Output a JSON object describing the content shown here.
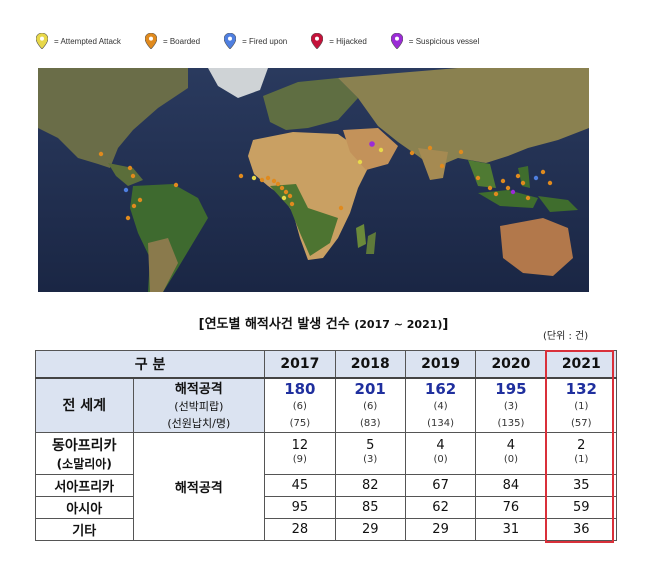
{
  "legend": [
    {
      "label": "= Attempted Attack",
      "color": "#e8d84a",
      "icon": "pin-icon"
    },
    {
      "label": "= Boarded",
      "color": "#e08a1e",
      "icon": "pin-icon"
    },
    {
      "label": "= Fired upon",
      "color": "#4f7fe0",
      "icon": "pin-icon"
    },
    {
      "label": "= Hijacked",
      "color": "#c4123a",
      "icon": "pin-icon"
    },
    {
      "label": "= Suspicious vessel",
      "color": "#9b2bd6",
      "icon": "pin-icon"
    }
  ],
  "title": {
    "text": "[연도별 해적사건 발생 건수",
    "years": "(2017 ~ 2021)",
    "close": "]"
  },
  "unit": "(단위 : 건)",
  "chart_data": {
    "type": "table",
    "header": {
      "label": "구  분",
      "years": [
        "2017",
        "2018",
        "2019",
        "2020",
        "2021"
      ]
    },
    "world": {
      "label": "전 세계",
      "sub": [
        "해적공격",
        "(선박피랍)",
        "(선원납치/명)"
      ],
      "attacks": [
        "180",
        "201",
        "162",
        "195",
        "132"
      ],
      "hijacked": [
        "(6)",
        "(6)",
        "(4)",
        "(3)",
        "(1)"
      ],
      "kidnapped": [
        "(75)",
        "(83)",
        "(134)",
        "(135)",
        "(57)"
      ]
    },
    "type_label": "해적공격",
    "regions": [
      {
        "name": "동아프리카",
        "sub": "(소말리아)",
        "values": [
          "12",
          "5",
          "4",
          "4",
          "2"
        ],
        "sub_values": [
          "(9)",
          "(3)",
          "(0)",
          "(0)",
          "(1)"
        ]
      },
      {
        "name": "서아프리카",
        "values": [
          "45",
          "82",
          "67",
          "84",
          "35"
        ]
      },
      {
        "name": "아시아",
        "values": [
          "95",
          "85",
          "62",
          "76",
          "59"
        ]
      },
      {
        "name": "기타",
        "values": [
          "28",
          "29",
          "29",
          "31",
          "36"
        ]
      }
    ],
    "highlight_column": "2021",
    "highlight_color": "#d9303a",
    "accent_color": "#1f2f9e"
  }
}
